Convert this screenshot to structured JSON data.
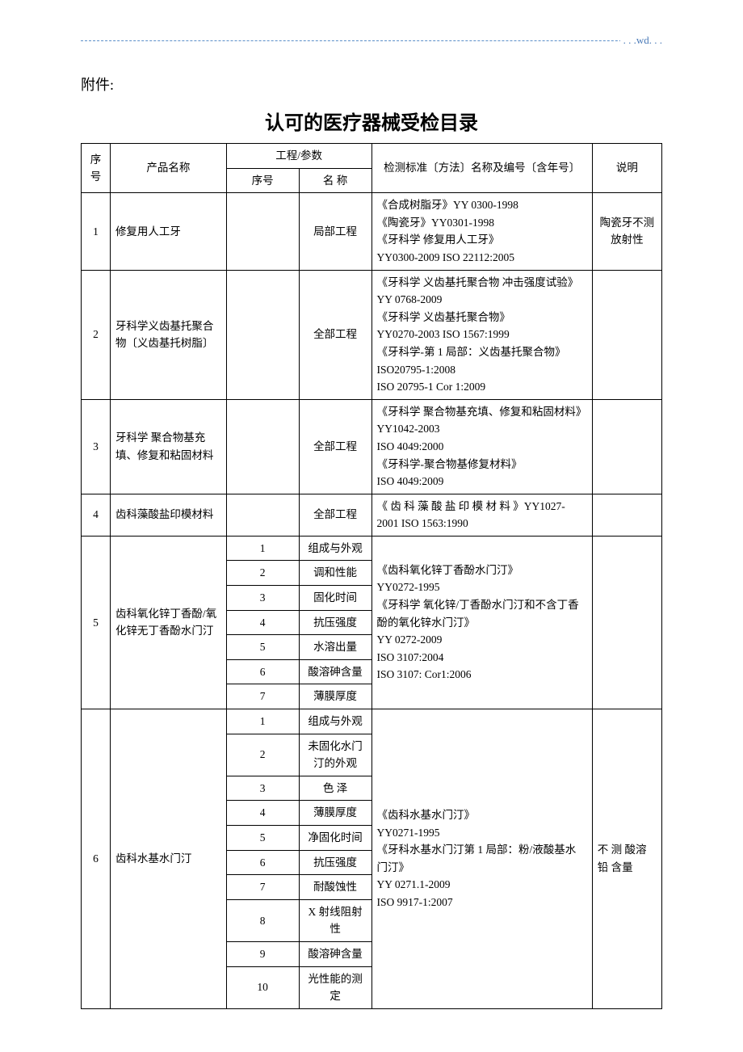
{
  "header": {
    "wd": ". . .wd. . ."
  },
  "attachment_label": "附件:",
  "title": "认可的医疗器械受检目录",
  "table": {
    "headers": {
      "seq": "序号",
      "product": "产品名称",
      "param_group": "工程/参数",
      "sub_seq": "序号",
      "sub_name": "名 称",
      "standard": "检测标准〔方法〕名称及编号〔含年号〕",
      "note": "说明"
    },
    "rows": {
      "r1": {
        "seq": "1",
        "product": "修复用人工牙",
        "sub_name": "局部工程",
        "standard": "《合成树脂牙》YY 0300-1998\n《陶瓷牙》YY0301-1998\n《牙科学 修复用人工牙》\nYY0300-2009    ISO 22112:2005",
        "note": "陶瓷牙不测放射性"
      },
      "r2": {
        "seq": "2",
        "product": "牙科学义齿基托聚合物〔义齿基托树脂〕",
        "sub_name": "全部工程",
        "standard": "《牙科学 义齿基托聚合物 冲击强度试验》YY 0768-2009\n《牙科学 义齿基托聚合物》\nYY0270-2003       ISO 1567:1999\n《牙科学-第 1 局部：义齿基托聚合物》 ISO20795-1:2008\nISO 20795-1 Cor 1:2009",
        "note": ""
      },
      "r3": {
        "seq": "3",
        "product": "牙科学 聚合物基充填、修复和粘固材料",
        "sub_name": "全部工程",
        "standard": "《牙科学 聚合物基充填、修复和粘固材料》    YY1042-2003\nISO 4049:2000\n《牙科学-聚合物基修复材料》\nISO 4049:2009",
        "note": ""
      },
      "r4": {
        "seq": "4",
        "product": "齿科藻酸盐印模材料",
        "sub_name": "全部工程",
        "standard": "《 齿 科 藻 酸 盐 印 模 材 料 》YY1027-2001 ISO 1563:1990",
        "note": ""
      },
      "r5": {
        "seq": "5",
        "product": "齿科氧化锌丁香酚/氧化锌无丁香酚水门汀",
        "subs": {
          "s1": {
            "n": "1",
            "name": "组成与外观"
          },
          "s2": {
            "n": "2",
            "name": "调和性能"
          },
          "s3": {
            "n": "3",
            "name": "固化时间"
          },
          "s4": {
            "n": "4",
            "name": "抗压强度"
          },
          "s5": {
            "n": "5",
            "name": "水溶出量"
          },
          "s6": {
            "n": "6",
            "name": "酸溶砷含量"
          },
          "s7": {
            "n": "7",
            "name": "薄膜厚度"
          }
        },
        "standard": "《齿科氧化锌丁香酚水门汀》\nYY0272-1995\n《牙科学 氧化锌/丁香酚水门汀和不含丁香酚的氧化锌水门汀》\nYY 0272-2009\nISO 3107:2004\nISO 3107: Cor1:2006",
        "note": ""
      },
      "r6": {
        "seq": "6",
        "product": "齿科水基水门汀",
        "subs": {
          "s1": {
            "n": "1",
            "name": "组成与外观"
          },
          "s2": {
            "n": "2",
            "name": "未固化水门汀的外观"
          },
          "s3": {
            "n": "3",
            "name": "色      泽"
          },
          "s4": {
            "n": "4",
            "name": "薄膜厚度"
          },
          "s5": {
            "n": "5",
            "name": "净固化时间"
          },
          "s6": {
            "n": "6",
            "name": "抗压强度"
          },
          "s7": {
            "n": "7",
            "name": "耐酸蚀性"
          },
          "s8": {
            "n": "8",
            "name": "X 射线阻射性"
          },
          "s9": {
            "n": "9",
            "name": "酸溶砷含量"
          },
          "s10": {
            "n": "10",
            "name": "光性能的测定"
          }
        },
        "standard": "《齿科水基水门汀》\nYY0271-1995\n《牙科水基水门汀第 1 局部：粉/液酸基水门汀》\nYY 0271.1-2009\nISO 9917-1:2007",
        "note": "不 测 酸溶 铅 含量"
      }
    }
  }
}
